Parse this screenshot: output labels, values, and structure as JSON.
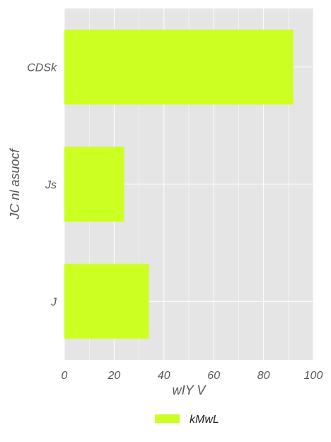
{
  "chart_data": {
    "type": "bar",
    "orientation": "horizontal",
    "categories": [
      "CDSk",
      "Js",
      "J"
    ],
    "series": [
      {
        "name": "kMwL",
        "values": [
          92,
          24,
          34
        ]
      }
    ],
    "xlabel": "wIY V",
    "ylabel": "JC nl asuocf",
    "xlim": [
      0,
      100
    ],
    "xticks": [
      "0",
      "20",
      "40",
      "60",
      "80",
      "100"
    ],
    "grid": true,
    "legend_position": "bottom-center",
    "colors": {
      "bar": "#CCFF22",
      "plot_background": "#E5E5E5",
      "grid": "#FFFFFF",
      "text": "#555555"
    }
  }
}
